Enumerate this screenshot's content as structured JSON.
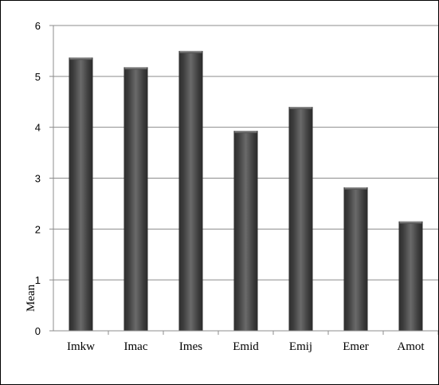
{
  "chart_data": {
    "type": "bar",
    "categories": [
      "Imkw",
      "Imac",
      "Imes",
      "Emid",
      "Emij",
      "Emer",
      "Amot"
    ],
    "values": [
      5.37,
      5.18,
      5.5,
      3.93,
      4.4,
      2.82,
      2.15
    ],
    "title": "",
    "xlabel": "",
    "ylabel": "Mean",
    "ylim": [
      0,
      6
    ],
    "yticks": [
      0,
      1,
      2,
      3,
      4,
      5,
      6
    ],
    "grid": true,
    "legend": "none",
    "bar_color": "#4a4a4a"
  }
}
